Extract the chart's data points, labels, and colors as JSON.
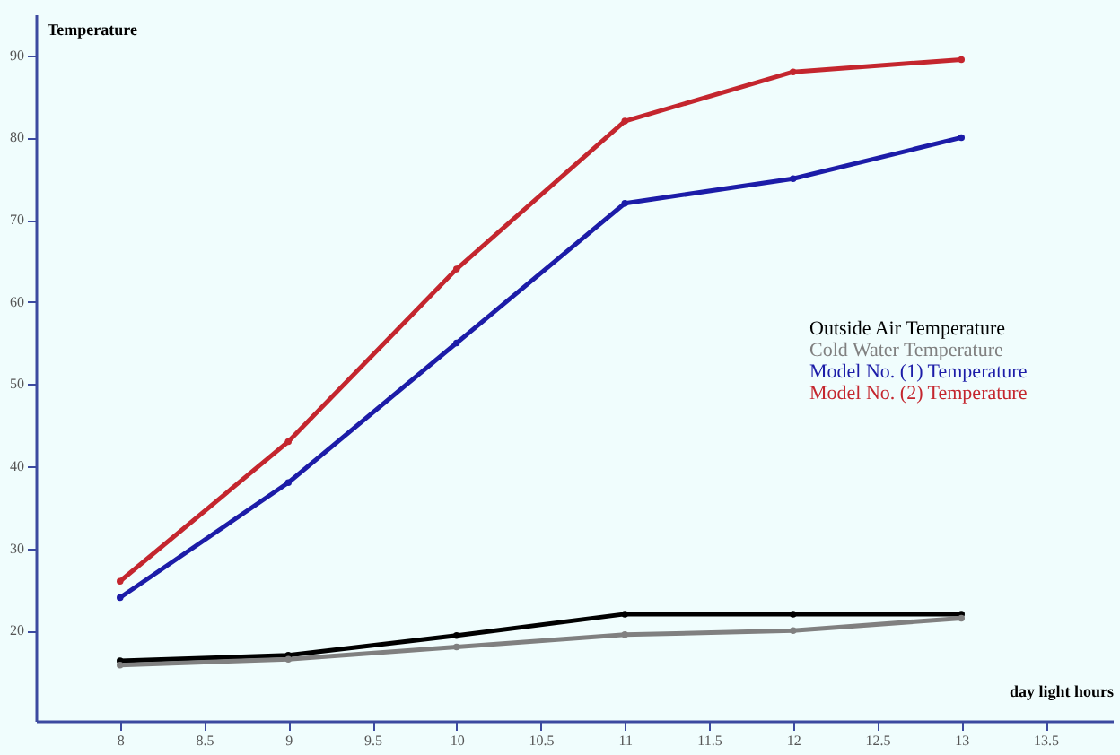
{
  "chart_data": {
    "type": "line",
    "xlabel": "day light hours",
    "ylabel": "Temperature",
    "x": [
      8,
      9,
      10,
      11,
      12,
      13
    ],
    "series": [
      {
        "name": "Outside Air Temperature",
        "color": "#000000",
        "values": [
          16.3,
          17,
          19.4,
          22,
          22,
          22
        ]
      },
      {
        "name": "Cold Water Temperature",
        "color": "#808080",
        "values": [
          15.8,
          16.5,
          18,
          19.5,
          20,
          21.5
        ]
      },
      {
        "name": "Model No. (1) Temperature",
        "color": "#1c1ca8",
        "values": [
          24,
          38,
          55,
          72,
          75,
          80
        ]
      },
      {
        "name": "Model No. (2) Temperature",
        "color": "#c4262e",
        "values": [
          26,
          43,
          64,
          82,
          88,
          89.5
        ]
      }
    ],
    "xlim": [
      7.5,
      13.9
    ],
    "ylim": [
      9,
      95
    ],
    "xticks": [
      8,
      8.5,
      9,
      9.5,
      10,
      10.5,
      11,
      11.5,
      12,
      12.5,
      13,
      13.5
    ],
    "yticks": [
      20,
      30,
      40,
      50,
      60,
      70,
      80,
      90
    ],
    "grid": false,
    "legend": "right",
    "marker": "circle",
    "line_style": "solid"
  }
}
